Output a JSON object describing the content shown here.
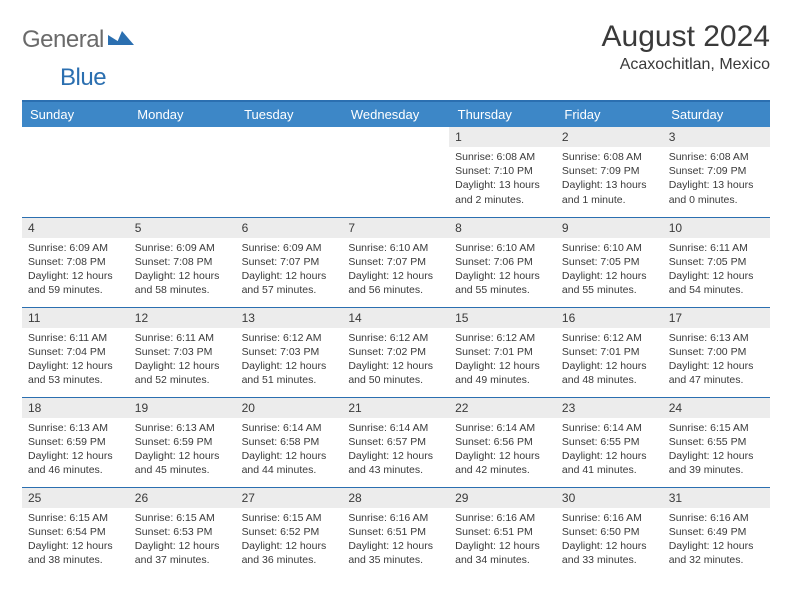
{
  "brand": {
    "part1": "General",
    "part2": "Blue"
  },
  "title": "August 2024",
  "location": "Acaxochitlan, Mexico",
  "colors": {
    "header_bg": "#3d87c7",
    "header_text": "#ffffff",
    "rule": "#2b6fb0",
    "daynum_bg": "#ececec",
    "text": "#3a3a3a",
    "brand_blue": "#2b6fb0",
    "brand_gray": "#6a6a6a"
  },
  "weekdays": [
    "Sunday",
    "Monday",
    "Tuesday",
    "Wednesday",
    "Thursday",
    "Friday",
    "Saturday"
  ],
  "weeks": [
    [
      null,
      null,
      null,
      null,
      {
        "n": "1",
        "sr": "6:08 AM",
        "ss": "7:10 PM",
        "dl": "13 hours and 2 minutes."
      },
      {
        "n": "2",
        "sr": "6:08 AM",
        "ss": "7:09 PM",
        "dl": "13 hours and 1 minute."
      },
      {
        "n": "3",
        "sr": "6:08 AM",
        "ss": "7:09 PM",
        "dl": "13 hours and 0 minutes."
      }
    ],
    [
      {
        "n": "4",
        "sr": "6:09 AM",
        "ss": "7:08 PM",
        "dl": "12 hours and 59 minutes."
      },
      {
        "n": "5",
        "sr": "6:09 AM",
        "ss": "7:08 PM",
        "dl": "12 hours and 58 minutes."
      },
      {
        "n": "6",
        "sr": "6:09 AM",
        "ss": "7:07 PM",
        "dl": "12 hours and 57 minutes."
      },
      {
        "n": "7",
        "sr": "6:10 AM",
        "ss": "7:07 PM",
        "dl": "12 hours and 56 minutes."
      },
      {
        "n": "8",
        "sr": "6:10 AM",
        "ss": "7:06 PM",
        "dl": "12 hours and 55 minutes."
      },
      {
        "n": "9",
        "sr": "6:10 AM",
        "ss": "7:05 PM",
        "dl": "12 hours and 55 minutes."
      },
      {
        "n": "10",
        "sr": "6:11 AM",
        "ss": "7:05 PM",
        "dl": "12 hours and 54 minutes."
      }
    ],
    [
      {
        "n": "11",
        "sr": "6:11 AM",
        "ss": "7:04 PM",
        "dl": "12 hours and 53 minutes."
      },
      {
        "n": "12",
        "sr": "6:11 AM",
        "ss": "7:03 PM",
        "dl": "12 hours and 52 minutes."
      },
      {
        "n": "13",
        "sr": "6:12 AM",
        "ss": "7:03 PM",
        "dl": "12 hours and 51 minutes."
      },
      {
        "n": "14",
        "sr": "6:12 AM",
        "ss": "7:02 PM",
        "dl": "12 hours and 50 minutes."
      },
      {
        "n": "15",
        "sr": "6:12 AM",
        "ss": "7:01 PM",
        "dl": "12 hours and 49 minutes."
      },
      {
        "n": "16",
        "sr": "6:12 AM",
        "ss": "7:01 PM",
        "dl": "12 hours and 48 minutes."
      },
      {
        "n": "17",
        "sr": "6:13 AM",
        "ss": "7:00 PM",
        "dl": "12 hours and 47 minutes."
      }
    ],
    [
      {
        "n": "18",
        "sr": "6:13 AM",
        "ss": "6:59 PM",
        "dl": "12 hours and 46 minutes."
      },
      {
        "n": "19",
        "sr": "6:13 AM",
        "ss": "6:59 PM",
        "dl": "12 hours and 45 minutes."
      },
      {
        "n": "20",
        "sr": "6:14 AM",
        "ss": "6:58 PM",
        "dl": "12 hours and 44 minutes."
      },
      {
        "n": "21",
        "sr": "6:14 AM",
        "ss": "6:57 PM",
        "dl": "12 hours and 43 minutes."
      },
      {
        "n": "22",
        "sr": "6:14 AM",
        "ss": "6:56 PM",
        "dl": "12 hours and 42 minutes."
      },
      {
        "n": "23",
        "sr": "6:14 AM",
        "ss": "6:55 PM",
        "dl": "12 hours and 41 minutes."
      },
      {
        "n": "24",
        "sr": "6:15 AM",
        "ss": "6:55 PM",
        "dl": "12 hours and 39 minutes."
      }
    ],
    [
      {
        "n": "25",
        "sr": "6:15 AM",
        "ss": "6:54 PM",
        "dl": "12 hours and 38 minutes."
      },
      {
        "n": "26",
        "sr": "6:15 AM",
        "ss": "6:53 PM",
        "dl": "12 hours and 37 minutes."
      },
      {
        "n": "27",
        "sr": "6:15 AM",
        "ss": "6:52 PM",
        "dl": "12 hours and 36 minutes."
      },
      {
        "n": "28",
        "sr": "6:16 AM",
        "ss": "6:51 PM",
        "dl": "12 hours and 35 minutes."
      },
      {
        "n": "29",
        "sr": "6:16 AM",
        "ss": "6:51 PM",
        "dl": "12 hours and 34 minutes."
      },
      {
        "n": "30",
        "sr": "6:16 AM",
        "ss": "6:50 PM",
        "dl": "12 hours and 33 minutes."
      },
      {
        "n": "31",
        "sr": "6:16 AM",
        "ss": "6:49 PM",
        "dl": "12 hours and 32 minutes."
      }
    ]
  ],
  "labels": {
    "sunrise": "Sunrise:",
    "sunset": "Sunset:",
    "daylight": "Daylight:"
  }
}
